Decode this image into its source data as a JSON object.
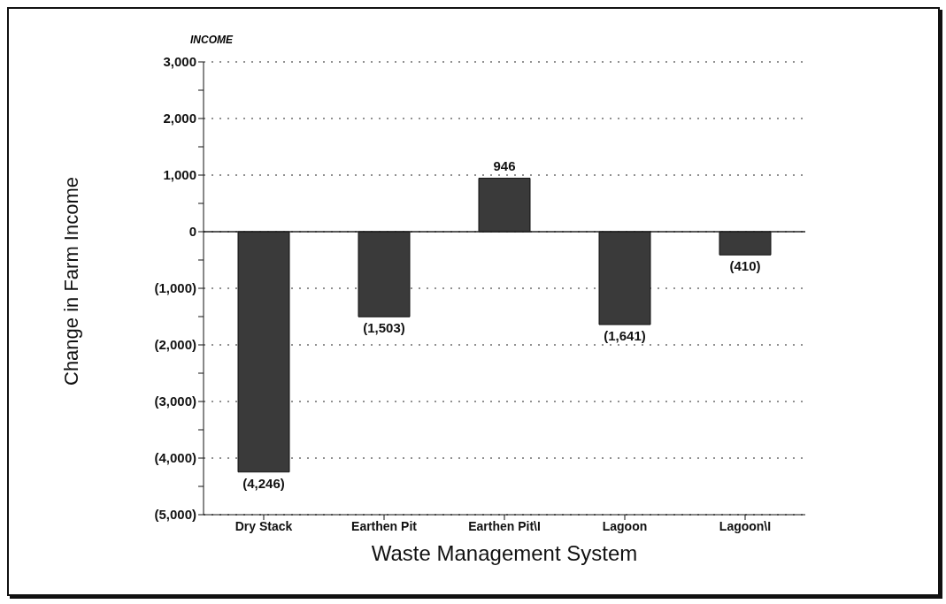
{
  "chart_data": {
    "type": "bar",
    "title": "INCOME",
    "xlabel": "Waste Management System",
    "ylabel": "Change in Farm Income",
    "categories": [
      "Dry Stack",
      "Earthen Pit",
      "Earthen Pit\\I",
      "Lagoon",
      "Lagoon\\I"
    ],
    "values": [
      -4246,
      -1503,
      946,
      -1641,
      -410
    ],
    "value_labels": [
      "(4,246)",
      "(1,503)",
      "946",
      "(1,641)",
      "(410)"
    ],
    "color": "#3a3a3a",
    "ylim": [
      -5000,
      3000
    ],
    "yticks": [
      {
        "value": -5000,
        "label": "(5,000)"
      },
      {
        "value": -4500,
        "label": null
      },
      {
        "value": -4000,
        "label": "(4,000)"
      },
      {
        "value": -3500,
        "label": null
      },
      {
        "value": -3000,
        "label": "(3,000)"
      },
      {
        "value": -2500,
        "label": null
      },
      {
        "value": -2000,
        "label": "(2,000)"
      },
      {
        "value": -1500,
        "label": null
      },
      {
        "value": -1000,
        "label": "(1,000)"
      },
      {
        "value": -500,
        "label": null
      },
      0,
      {
        "value": 500,
        "label": null
      },
      {
        "value": 1000,
        "label": "1,000"
      },
      {
        "value": 1500,
        "label": null
      },
      {
        "value": 2000,
        "label": "2,000"
      },
      {
        "value": 2500,
        "label": null
      },
      {
        "value": 3000,
        "label": "3,000"
      }
    ],
    "ref_lines": [
      {
        "axis": "y",
        "value": 0,
        "color": "#222222",
        "line_style": "solid"
      }
    ],
    "grid": "y",
    "line_style": "dotted"
  }
}
